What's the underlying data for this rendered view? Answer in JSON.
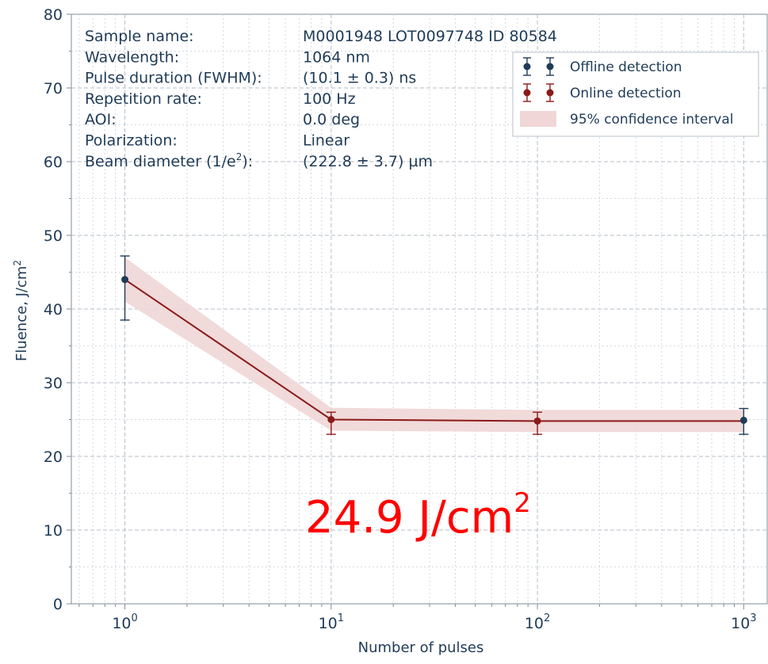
{
  "chart_data": {
    "type": "line",
    "xscale": "log",
    "xlabel": "Number of pulses",
    "ylabel": "Fluence, J/cm",
    "ylabel_sup": "2",
    "xlim": [
      0.55,
      1300
    ],
    "ylim": [
      0,
      80
    ],
    "x_ticks": [
      {
        "value": 1,
        "base": "10",
        "exp": "0"
      },
      {
        "value": 10,
        "base": "10",
        "exp": "1"
      },
      {
        "value": 100,
        "base": "10",
        "exp": "2"
      },
      {
        "value": 1000,
        "base": "10",
        "exp": "3"
      }
    ],
    "y_ticks": [
      0,
      10,
      20,
      30,
      40,
      50,
      60,
      70,
      80
    ],
    "grid": true,
    "series": [
      {
        "name": "Offline detection",
        "color": "#1f3b57",
        "points": [
          {
            "x": 1,
            "y": 44.0,
            "err_low": 38.5,
            "err_high": 47.2
          },
          {
            "x": 1000,
            "y": 24.9,
            "err_low": 23.0,
            "err_high": 26.5
          }
        ]
      },
      {
        "name": "Online detection",
        "color": "#8b1a1a",
        "points": [
          {
            "x": 10,
            "y": 25.0,
            "err_low": 23.0,
            "err_high": 26.0
          },
          {
            "x": 100,
            "y": 24.8,
            "err_low": 23.0,
            "err_high": 26.0
          }
        ]
      }
    ],
    "fit_line": {
      "color": "#8b1a1a",
      "x": [
        1,
        10,
        100,
        1000
      ],
      "y": [
        44.0,
        25.0,
        24.8,
        24.8
      ]
    },
    "confidence_band": {
      "name": "95% confidence interval",
      "color": "#f0d6d6",
      "x": [
        1,
        10,
        100,
        1000
      ],
      "lower": [
        41.0,
        23.5,
        23.3,
        23.3
      ],
      "upper": [
        47.0,
        26.6,
        26.3,
        26.3
      ]
    },
    "legend": {
      "placement": "top-right",
      "entries": [
        "Offline detection",
        "Online detection",
        "95% confidence interval"
      ]
    },
    "info_block": [
      {
        "label": "Sample name:",
        "value": "M0001948  LOT0097748 ID 80584"
      },
      {
        "label": "Wavelength:",
        "value": "1064 nm"
      },
      {
        "label": "Pulse duration (FWHM):",
        "value": "(10.1 ± 0.3) ns"
      },
      {
        "label": "Repetition rate:",
        "value": "100 Hz"
      },
      {
        "label": "AOI:",
        "value": "0.0 deg"
      },
      {
        "label": "Polarization:",
        "value": "Linear"
      },
      {
        "label": "Beam diameter (1/e",
        "label_sup": "2",
        "label_tail": "):",
        "value": "(222.8 ± 3.7) µm"
      }
    ],
    "annotation": {
      "text": "24.9 J/cm",
      "sup": "2",
      "color": "#ff0000"
    }
  }
}
